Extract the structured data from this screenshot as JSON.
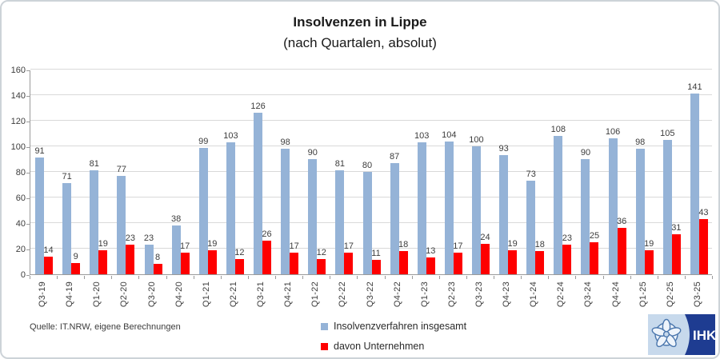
{
  "title": "Insolvenzen in Lippe",
  "subtitle": "(nach Quartalen, absolut)",
  "source": "Quelle: IT.NRW, eigene Berechnungen",
  "logo": {
    "text": "IHK"
  },
  "chart_data": {
    "type": "bar",
    "title": "Insolvenzen in Lippe",
    "subtitle": "(nach Quartalen, absolut)",
    "categories": [
      "Q3-19",
      "Q4-19",
      "Q1-20",
      "Q2-20",
      "Q3-20",
      "Q4-20",
      "Q1-21",
      "Q2-21",
      "Q3-21",
      "Q4-21",
      "Q1-22",
      "Q2-22",
      "Q3-22",
      "Q4-22",
      "Q1-23",
      "Q2-23",
      "Q3-23",
      "Q4-23",
      "Q1-24",
      "Q2-24",
      "Q3-24",
      "Q4-24",
      "Q1-25",
      "Q2-25",
      "Q3-25"
    ],
    "series": [
      {
        "name": "Insolvenzverfahren insgesamt",
        "color": "#95b3d7",
        "values": [
          91,
          71,
          81,
          77,
          23,
          38,
          99,
          103,
          126,
          98,
          90,
          81,
          80,
          87,
          103,
          104,
          100,
          93,
          73,
          108,
          90,
          106,
          98,
          105,
          141
        ]
      },
      {
        "name": "davon Unternehmen",
        "color": "#fe0000",
        "values": [
          14,
          9,
          19,
          23,
          8,
          17,
          19,
          12,
          26,
          17,
          12,
          17,
          11,
          18,
          13,
          17,
          24,
          19,
          18,
          23,
          25,
          36,
          19,
          31,
          43
        ]
      }
    ],
    "ylim": [
      0,
      160
    ],
    "ytick_step": 20,
    "grid": true,
    "legend_position": "bottom",
    "data_labels": true
  }
}
